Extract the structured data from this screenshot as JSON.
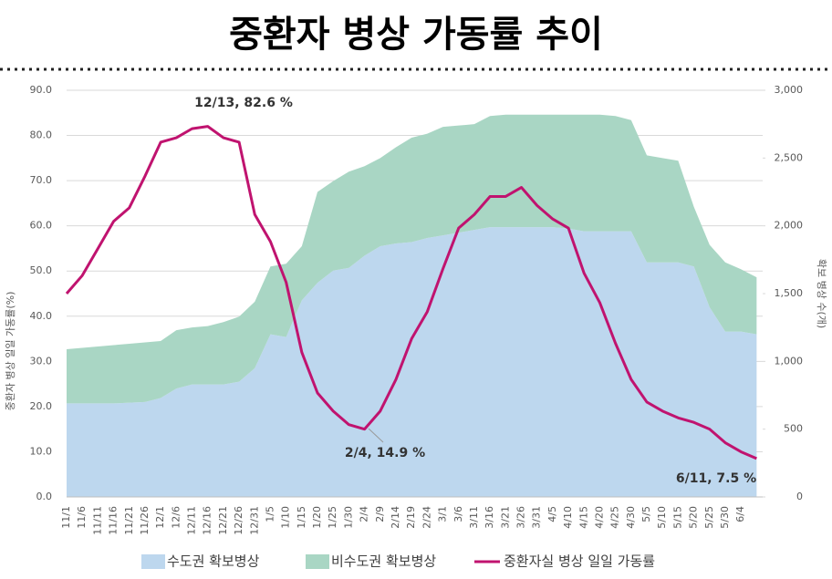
{
  "chart_data": {
    "type": "combo",
    "title": "중환자 병상 가동률 추이",
    "ylabel": "중환자 병상 일일 가동률(%)",
    "y2label": "확보 병상 수(개)",
    "categories": [
      "11/1",
      "11/6",
      "11/11",
      "11/16",
      "11/21",
      "11/26",
      "12/1",
      "12/6",
      "12/11",
      "12/16",
      "12/21",
      "12/26",
      "12/31",
      "1/5",
      "1/10",
      "1/15",
      "1/20",
      "1/25",
      "1/30",
      "2/4",
      "2/9",
      "2/14",
      "2/19",
      "2/24",
      "3/1",
      "3/6",
      "3/11",
      "3/16",
      "3/21",
      "3/26",
      "3/31",
      "4/5",
      "4/10",
      "4/15",
      "4/20",
      "4/25",
      "4/30",
      "5/5",
      "5/10",
      "5/15",
      "5/20",
      "5/25",
      "5/30",
      "6/4",
      null
    ],
    "series": [
      {
        "name": "수도권 확보병상",
        "type": "area",
        "axis": "y2",
        "color": "#bdd7ee",
        "values": [
          690,
          690,
          690,
          690,
          695,
          700,
          730,
          800,
          830,
          830,
          830,
          850,
          950,
          1200,
          1180,
          1450,
          1580,
          1670,
          1690,
          1780,
          1850,
          1870,
          1880,
          1910,
          1930,
          1950,
          1970,
          1990,
          1990,
          1990,
          1990,
          1990,
          1980,
          1960,
          1960,
          1960,
          1960,
          1730,
          1730,
          1730,
          1700,
          1400,
          1220,
          1220,
          1200
        ]
      },
      {
        "name": "비수도권 확보병상",
        "type": "area",
        "axis": "y2",
        "color": "#a9d6c4",
        "values": [
          400,
          410,
          420,
          430,
          435,
          440,
          420,
          430,
          420,
          430,
          460,
          480,
          490,
          500,
          540,
          400,
          670,
          660,
          710,
          660,
          650,
          710,
          770,
          770,
          800,
          790,
          780,
          820,
          830,
          830,
          830,
          830,
          840,
          860,
          860,
          850,
          820,
          790,
          770,
          750,
          440,
          460,
          510,
          460,
          420
        ]
      },
      {
        "name": "중환자실 병상 일일 가동률",
        "type": "line",
        "axis": "y",
        "color": "#c0136f",
        "values": [
          45,
          49,
          55,
          61,
          64,
          71,
          78.5,
          79.5,
          81.5,
          82,
          79.5,
          78.5,
          62.5,
          56.5,
          47.5,
          32,
          23,
          19,
          16,
          15,
          19,
          26,
          35,
          41,
          50.5,
          59.5,
          62.5,
          66.5,
          66.5,
          68.5,
          64.5,
          61.5,
          59.5,
          49.5,
          43,
          34,
          26,
          21,
          19,
          17.5,
          16.5,
          15,
          12,
          10,
          8.5
        ]
      }
    ],
    "annotations": [
      "12/13, 82.6 %",
      "2/4, 14.9 %",
      "6/11, 7.5 %"
    ],
    "ylim": [
      0,
      90
    ],
    "yticks": [
      {
        "value": 0,
        "label": "0.0"
      },
      {
        "value": 10,
        "label": "10.0"
      },
      {
        "value": 20,
        "label": "20.0"
      },
      {
        "value": 30,
        "label": "30.0"
      },
      {
        "value": 40,
        "label": "40.0"
      },
      {
        "value": 50,
        "label": "50.0"
      },
      {
        "value": 60,
        "label": "60.0"
      },
      {
        "value": 70,
        "label": "70.0"
      },
      {
        "value": 80,
        "label": "80.0"
      },
      {
        "value": 90,
        "label": "90.0"
      }
    ],
    "y2lim": [
      0,
      3000
    ],
    "y2ticks": [
      0,
      500,
      {
        "value": 1000,
        "label": "1,000"
      },
      {
        "value": 1500,
        "label": "1,500"
      },
      {
        "value": 2000,
        "label": "2,000"
      },
      {
        "value": 2500,
        "label": "2,500"
      },
      {
        "value": 3000,
        "label": "3,000"
      }
    ],
    "grid": true,
    "legend": "bottom"
  }
}
